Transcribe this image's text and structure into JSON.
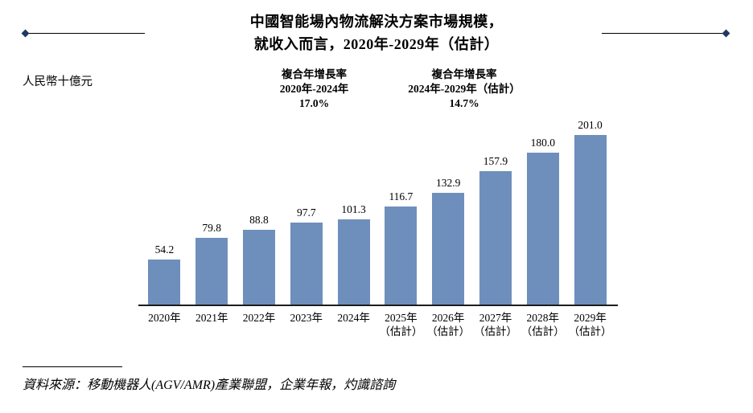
{
  "title": {
    "line1": "中國智能場內物流解決方案市場規模，",
    "line2": "就收入而言，2020年-2029年（估計）"
  },
  "y_unit": "人民幣十億元",
  "cagr_annotations": [
    {
      "label": "複合年增長率",
      "period": "2020年-2024年",
      "value": "17.0%"
    },
    {
      "label": "複合年增長率",
      "period": "2024年-2029年（估計）",
      "value": "14.7%"
    }
  ],
  "chart_data": {
    "type": "bar",
    "title": "中國智能場內物流解決方案市場規模，就收入而言，2020年-2029年（估計）",
    "ylabel": "人民幣十億元",
    "xlabel": "",
    "ylim": [
      0,
      210
    ],
    "grid": false,
    "legend": false,
    "categories": [
      {
        "year": "2020年",
        "note": ""
      },
      {
        "year": "2021年",
        "note": ""
      },
      {
        "year": "2022年",
        "note": ""
      },
      {
        "year": "2023年",
        "note": ""
      },
      {
        "year": "2024年",
        "note": ""
      },
      {
        "year": "2025年",
        "note": "（估計）"
      },
      {
        "year": "2026年",
        "note": "（估計）"
      },
      {
        "year": "2027年",
        "note": "（估計）"
      },
      {
        "year": "2028年",
        "note": "（估計）"
      },
      {
        "year": "2029年",
        "note": "（估計）"
      }
    ],
    "values": [
      54.2,
      79.8,
      88.8,
      97.7,
      101.3,
      116.7,
      132.9,
      157.9,
      180.0,
      201.0
    ],
    "bar_color": "#6e8fbc"
  },
  "source": "資料來源：移動機器人(AGV/AMR)產業聯盟，企業年報，灼識諮詢",
  "colors": {
    "bar": "#6e8fbc",
    "axis": "#1c1c1c",
    "diamond": "#1f3864"
  }
}
